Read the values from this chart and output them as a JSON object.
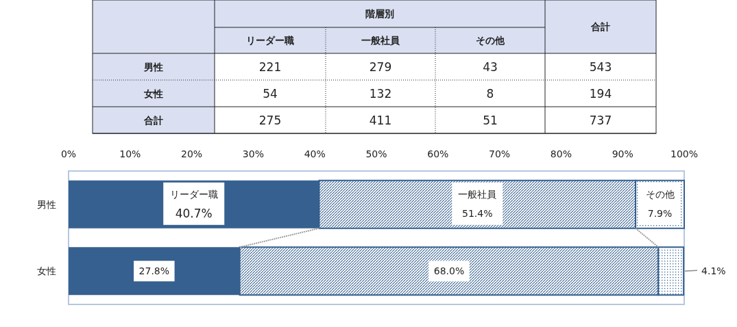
{
  "chart_data": [
    {
      "type": "heatmap",
      "title": "階層別",
      "categories": [
        "リーダー職",
        "一般社員",
        "その他",
        "合計"
      ],
      "y_categories": [
        "男性",
        "女性",
        "合計"
      ],
      "cells": [
        [
          221,
          279,
          43,
          543
        ],
        [
          54,
          132,
          8,
          194
        ],
        [
          275,
          411,
          51,
          737
        ]
      ],
      "data_labels": true
    },
    {
      "type": "bar",
      "orientation": "horizontal",
      "stacked": true,
      "categories": [
        "男性",
        "女性"
      ],
      "xlim": [
        0,
        100
      ],
      "xticks": [
        {
          "value": 0,
          "label": "0%"
        },
        {
          "value": 10,
          "label": "10%"
        },
        {
          "value": 20,
          "label": "20%"
        },
        {
          "value": 30,
          "label": "30%"
        },
        {
          "value": 40,
          "label": "40%"
        },
        {
          "value": 50,
          "label": "50%"
        },
        {
          "value": 60,
          "label": "60%"
        },
        {
          "value": 70,
          "label": "70%"
        },
        {
          "value": 80,
          "label": "80%"
        },
        {
          "value": 90,
          "label": "90%"
        },
        {
          "value": 100,
          "label": "100%"
        }
      ],
      "grid": false,
      "series": [
        {
          "name": "リーダー職",
          "color": "#36608f",
          "values": [
            40.7,
            27.8
          ],
          "value_labels": [
            "40.7%",
            "27.8%"
          ]
        },
        {
          "name": "一般社員",
          "color": "#36608f",
          "values": [
            51.4,
            68.0
          ],
          "value_labels": [
            "51.4%",
            "68.0%"
          ]
        },
        {
          "name": "その他",
          "color": "#36608f",
          "values": [
            7.9,
            4.1
          ],
          "value_labels": [
            "7.9%",
            "4.1%"
          ]
        }
      ]
    }
  ]
}
